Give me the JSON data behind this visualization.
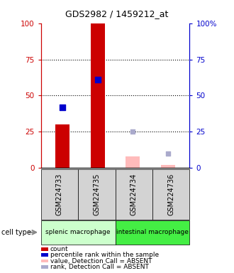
{
  "title": "GDS2982 / 1459212_at",
  "samples": [
    "GSM224733",
    "GSM224735",
    "GSM224734",
    "GSM224736"
  ],
  "groups": [
    {
      "name": "splenic macrophage",
      "color": "#ccffcc",
      "samples": [
        0,
        1
      ]
    },
    {
      "name": "intestinal macrophage",
      "color": "#44ee44",
      "samples": [
        2,
        3
      ]
    }
  ],
  "bar_values": [
    30,
    100,
    8,
    2
  ],
  "bar_present": [
    true,
    true,
    false,
    false
  ],
  "rank_present": [
    42,
    61,
    null,
    null
  ],
  "rank_absent": [
    null,
    null,
    25,
    10
  ],
  "ylim": [
    0,
    100
  ],
  "yticks": [
    0,
    25,
    50,
    75,
    100
  ],
  "left_axis_color": "#cc0000",
  "right_axis_color": "#0000cc",
  "bar_color_present": "#cc0000",
  "bar_color_absent": "#ffbbbb",
  "rank_color_present": "#0000cc",
  "rank_color_absent": "#aaaacc",
  "legend_items": [
    {
      "color": "#cc0000",
      "label": "count"
    },
    {
      "color": "#0000cc",
      "label": "percentile rank within the sample"
    },
    {
      "color": "#ffbbbb",
      "label": "value, Detection Call = ABSENT"
    },
    {
      "color": "#aaaacc",
      "label": "rank, Detection Call = ABSENT"
    }
  ]
}
